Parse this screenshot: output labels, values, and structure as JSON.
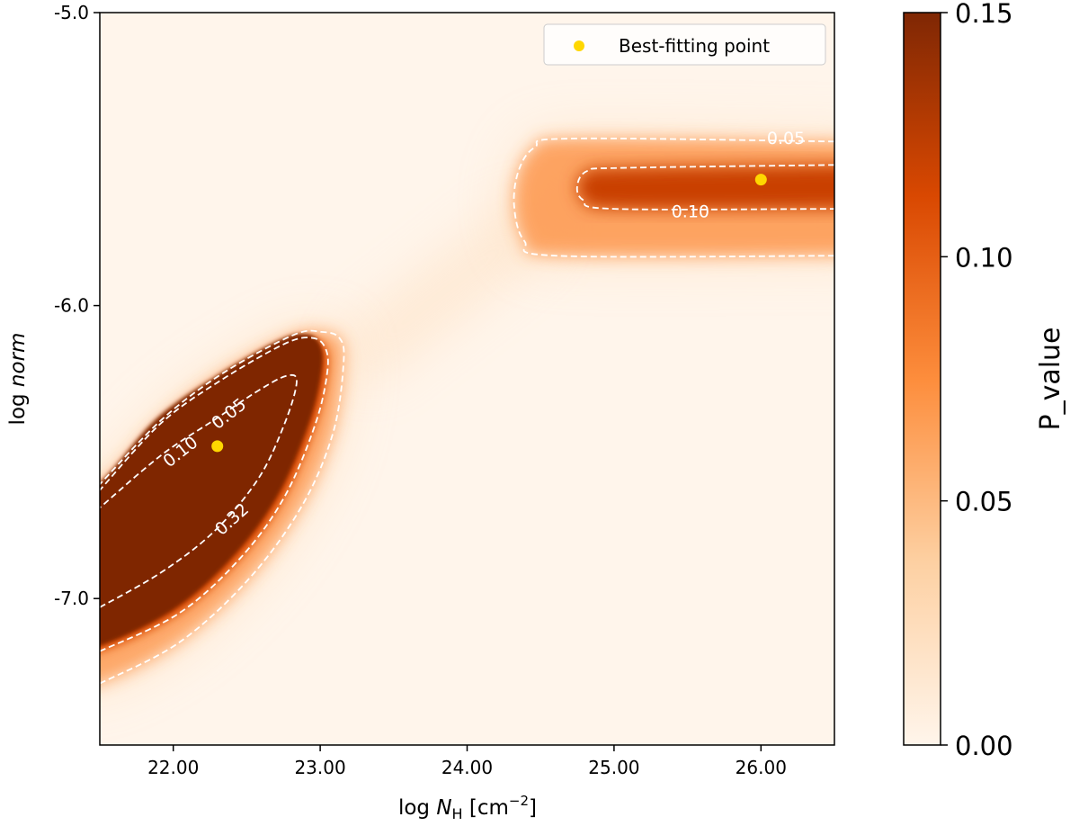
{
  "chart_data": {
    "type": "heatmap",
    "xlabel": "log N_H [cm^-2]",
    "xlabel_parts": {
      "prefix": "log ",
      "var": "N",
      "sub": "H",
      "unit": " [cm",
      "exp": "−2",
      "close": "]"
    },
    "ylabel": "log norm",
    "ylabel_parts": {
      "prefix": "log ",
      "var": "norm"
    },
    "xlim": [
      21.5,
      26.5
    ],
    "ylim": [
      -7.5,
      -5.0
    ],
    "xticks": [
      22,
      23,
      24,
      25,
      26
    ],
    "xtick_labels": [
      "22.00",
      "23.00",
      "24.00",
      "25.00",
      "26.00"
    ],
    "yticks": [
      -5,
      -6,
      -7
    ],
    "ytick_labels": [
      "-5.0",
      "-6.0",
      "-7.0"
    ],
    "colormap": "Oranges",
    "colormap_stops": [
      "#fff5eb",
      "#fdd0a2",
      "#fd8d3c",
      "#d94801",
      "#7f2704"
    ],
    "colorbar": {
      "label": "P_value",
      "range": [
        0.0,
        0.15
      ],
      "ticks": [
        0.0,
        0.05,
        0.1,
        0.15
      ],
      "tick_labels": [
        "0.00",
        "0.05",
        "0.10",
        "0.15"
      ]
    },
    "legend": {
      "label": "Best-fitting point",
      "placement": "top-right",
      "color": "#ffd700"
    },
    "best_fit_points": [
      {
        "x": 22.3,
        "y": -6.48
      },
      {
        "x": 26.0,
        "y": -5.57
      }
    ],
    "contours": [
      {
        "level": "0.32",
        "blob": "low",
        "points": [
          [
            21.5,
            -7.03
          ],
          [
            21.92,
            -6.91
          ],
          [
            22.28,
            -6.77
          ],
          [
            22.58,
            -6.59
          ],
          [
            22.76,
            -6.4
          ],
          [
            22.84,
            -6.26
          ],
          [
            22.77,
            -6.24
          ],
          [
            22.58,
            -6.29
          ],
          [
            22.28,
            -6.39
          ],
          [
            21.92,
            -6.51
          ],
          [
            21.5,
            -6.69
          ]
        ]
      },
      {
        "level": "0.10",
        "blob": "low",
        "points": [
          [
            21.5,
            -7.18
          ],
          [
            22.04,
            -7.05
          ],
          [
            22.46,
            -6.86
          ],
          [
            22.76,
            -6.65
          ],
          [
            22.97,
            -6.4
          ],
          [
            23.05,
            -6.22
          ],
          [
            23.03,
            -6.14
          ],
          [
            22.94,
            -6.11
          ],
          [
            22.76,
            -6.13
          ],
          [
            22.34,
            -6.25
          ],
          [
            21.92,
            -6.4
          ],
          [
            21.5,
            -6.63
          ]
        ]
      },
      {
        "level": "0.05",
        "blob": "low",
        "points": [
          [
            21.5,
            -7.29
          ],
          [
            22.04,
            -7.15
          ],
          [
            22.52,
            -6.93
          ],
          [
            22.88,
            -6.68
          ],
          [
            23.09,
            -6.43
          ],
          [
            23.16,
            -6.19
          ],
          [
            23.13,
            -6.11
          ],
          [
            23.01,
            -6.09
          ],
          [
            22.82,
            -6.1
          ],
          [
            22.34,
            -6.23
          ],
          [
            21.92,
            -6.39
          ],
          [
            21.5,
            -6.61
          ]
        ]
      },
      {
        "level": "0.05",
        "blob": "high",
        "points": [
          [
            26.5,
            -5.44
          ],
          [
            24.7,
            -5.43
          ],
          [
            24.46,
            -5.46
          ],
          [
            24.35,
            -5.54
          ],
          [
            24.32,
            -5.66
          ],
          [
            24.39,
            -5.78
          ],
          [
            24.61,
            -5.83
          ],
          [
            26.5,
            -5.83
          ]
        ]
      },
      {
        "level": "0.10",
        "blob": "high",
        "points": [
          [
            26.5,
            -5.52
          ],
          [
            25.06,
            -5.53
          ],
          [
            24.82,
            -5.54
          ],
          [
            24.75,
            -5.59
          ],
          [
            24.79,
            -5.64
          ],
          [
            25.0,
            -5.67
          ],
          [
            26.5,
            -5.67
          ]
        ]
      }
    ],
    "contour_labels": [
      {
        "text": "0.05",
        "x": 26.17,
        "y": -5.43,
        "angle": 0
      },
      {
        "text": "0.10",
        "x": 25.52,
        "y": -5.68,
        "angle": 0
      },
      {
        "text": "0.32",
        "x": 22.4,
        "y": -6.73,
        "angle": -42
      },
      {
        "text": "0.10",
        "x": 22.05,
        "y": -6.5,
        "angle": -38
      },
      {
        "text": "0.05",
        "x": 22.38,
        "y": -6.37,
        "angle": -38
      }
    ]
  }
}
